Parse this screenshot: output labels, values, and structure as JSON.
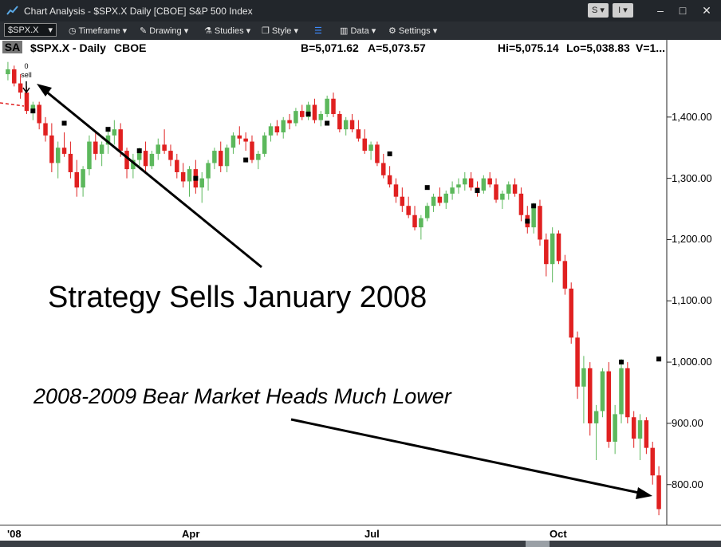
{
  "window": {
    "title": "Chart Analysis - $SPX.X Daily [CBOE] S&P 500 Index",
    "btn_s": "S ▾",
    "btn_i": "I ▾",
    "minimize": "–",
    "maximize": "□",
    "close": "✕"
  },
  "toolbar": {
    "symbol": "$SPX.X",
    "timeframe": "Timeframe",
    "drawing": "Drawing",
    "studies": "Studies",
    "style": "Style",
    "data": "Data",
    "settings": "Settings"
  },
  "info": {
    "badge": "SA",
    "symbol": "$SPX.X - Daily",
    "exchange": "CBOE",
    "bid": "B=5,071.62",
    "ask": "A=5,073.57",
    "hi": "Hi=5,075.14",
    "lo": "Lo=5,038.83",
    "vol": "V=1..."
  },
  "annotations": {
    "strategy_text": "Strategy Sells January 2008",
    "bear_text": "2008-2009 Bear Market Heads Much Lower",
    "signal_count": "0",
    "signal_label": "sell"
  },
  "colors": {
    "up": "#5cb85c",
    "down": "#e02020",
    "marker": "#000000",
    "chart_bg": "#ffffff"
  },
  "chart_data": {
    "type": "candlestick",
    "y_ticks": [
      "1,400.00",
      "1,300.00",
      "1,200.00",
      "1,100.00",
      "1,000.00",
      "900.00",
      "800.00"
    ],
    "y_tick_values": [
      1400,
      1300,
      1200,
      1100,
      1000,
      900,
      800
    ],
    "x_ticks": [
      "'08",
      "Apr",
      "Jul",
      "Oct"
    ],
    "ylim": [
      745,
      1500
    ],
    "series": [
      {
        "values": [
          [
            1470,
            1490,
            1460,
            1478
          ],
          [
            1478,
            1484,
            1450,
            1455
          ],
          [
            1455,
            1470,
            1430,
            1440
          ],
          [
            1440,
            1450,
            1405,
            1410
          ],
          [
            1410,
            1425,
            1395,
            1420
          ],
          [
            1420,
            1425,
            1380,
            1390
          ],
          [
            1390,
            1400,
            1360,
            1370
          ],
          [
            1370,
            1390,
            1310,
            1325
          ],
          [
            1325,
            1360,
            1300,
            1350
          ],
          [
            1350,
            1375,
            1335,
            1340
          ],
          [
            1340,
            1360,
            1300,
            1310
          ],
          [
            1310,
            1330,
            1270,
            1285
          ],
          [
            1285,
            1320,
            1270,
            1315
          ],
          [
            1315,
            1370,
            1305,
            1360
          ],
          [
            1360,
            1375,
            1330,
            1340
          ],
          [
            1340,
            1360,
            1320,
            1355
          ],
          [
            1355,
            1380,
            1340,
            1370
          ],
          [
            1370,
            1395,
            1355,
            1380
          ],
          [
            1380,
            1390,
            1335,
            1345
          ],
          [
            1345,
            1350,
            1300,
            1315
          ],
          [
            1315,
            1340,
            1300,
            1330
          ],
          [
            1330,
            1350,
            1315,
            1345
          ],
          [
            1345,
            1360,
            1310,
            1320
          ],
          [
            1320,
            1345,
            1315,
            1340
          ],
          [
            1340,
            1365,
            1330,
            1355
          ],
          [
            1355,
            1380,
            1340,
            1345
          ],
          [
            1345,
            1355,
            1320,
            1330
          ],
          [
            1330,
            1340,
            1300,
            1310
          ],
          [
            1310,
            1325,
            1285,
            1295
          ],
          [
            1295,
            1320,
            1270,
            1315
          ],
          [
            1315,
            1330,
            1275,
            1285
          ],
          [
            1285,
            1310,
            1260,
            1300
          ],
          [
            1300,
            1330,
            1280,
            1325
          ],
          [
            1325,
            1350,
            1315,
            1345
          ],
          [
            1345,
            1360,
            1310,
            1320
          ],
          [
            1320,
            1355,
            1310,
            1350
          ],
          [
            1350,
            1375,
            1340,
            1370
          ],
          [
            1370,
            1385,
            1355,
            1365
          ],
          [
            1365,
            1375,
            1345,
            1360
          ],
          [
            1360,
            1370,
            1325,
            1330
          ],
          [
            1330,
            1345,
            1315,
            1340
          ],
          [
            1340,
            1375,
            1335,
            1370
          ],
          [
            1370,
            1390,
            1360,
            1385
          ],
          [
            1385,
            1395,
            1370,
            1375
          ],
          [
            1375,
            1400,
            1365,
            1395
          ],
          [
            1395,
            1405,
            1380,
            1390
          ],
          [
            1390,
            1415,
            1385,
            1410
          ],
          [
            1410,
            1420,
            1395,
            1400
          ],
          [
            1400,
            1425,
            1395,
            1420
          ],
          [
            1420,
            1430,
            1390,
            1395
          ],
          [
            1395,
            1410,
            1385,
            1405
          ],
          [
            1405,
            1435,
            1400,
            1430
          ],
          [
            1430,
            1440,
            1400,
            1405
          ],
          [
            1405,
            1410,
            1375,
            1380
          ],
          [
            1380,
            1400,
            1370,
            1395
          ],
          [
            1395,
            1405,
            1375,
            1380
          ],
          [
            1380,
            1395,
            1360,
            1365
          ],
          [
            1365,
            1380,
            1340,
            1345
          ],
          [
            1345,
            1360,
            1330,
            1355
          ],
          [
            1355,
            1360,
            1320,
            1325
          ],
          [
            1325,
            1340,
            1300,
            1305
          ],
          [
            1305,
            1320,
            1285,
            1290
          ],
          [
            1290,
            1300,
            1260,
            1270
          ],
          [
            1270,
            1285,
            1245,
            1255
          ],
          [
            1255,
            1270,
            1235,
            1240
          ],
          [
            1240,
            1255,
            1215,
            1220
          ],
          [
            1220,
            1240,
            1200,
            1235
          ],
          [
            1235,
            1260,
            1230,
            1255
          ],
          [
            1255,
            1275,
            1245,
            1270
          ],
          [
            1270,
            1285,
            1255,
            1260
          ],
          [
            1260,
            1280,
            1250,
            1275
          ],
          [
            1275,
            1295,
            1265,
            1285
          ],
          [
            1285,
            1300,
            1275,
            1290
          ],
          [
            1290,
            1310,
            1280,
            1300
          ],
          [
            1300,
            1310,
            1280,
            1285
          ],
          [
            1285,
            1295,
            1270,
            1280
          ],
          [
            1280,
            1305,
            1275,
            1300
          ],
          [
            1300,
            1310,
            1285,
            1290
          ],
          [
            1290,
            1300,
            1260,
            1265
          ],
          [
            1265,
            1280,
            1250,
            1275
          ],
          [
            1275,
            1295,
            1265,
            1290
          ],
          [
            1290,
            1300,
            1270,
            1275
          ],
          [
            1275,
            1285,
            1230,
            1240
          ],
          [
            1240,
            1255,
            1210,
            1220
          ],
          [
            1220,
            1260,
            1210,
            1255
          ],
          [
            1255,
            1265,
            1190,
            1200
          ],
          [
            1200,
            1210,
            1140,
            1160
          ],
          [
            1160,
            1220,
            1130,
            1210
          ],
          [
            1210,
            1215,
            1160,
            1165
          ],
          [
            1165,
            1175,
            1110,
            1120
          ],
          [
            1120,
            1130,
            1030,
            1040
          ],
          [
            1040,
            1050,
            940,
            960
          ],
          [
            960,
            1010,
            900,
            990
          ],
          [
            990,
            1000,
            880,
            900
          ],
          [
            900,
            930,
            840,
            920
          ],
          [
            920,
            990,
            910,
            985
          ],
          [
            985,
            1000,
            860,
            870
          ],
          [
            870,
            930,
            850,
            915
          ],
          [
            915,
            1005,
            900,
            990
          ],
          [
            990,
            1000,
            900,
            910
          ],
          [
            910,
            920,
            860,
            875
          ],
          [
            875,
            915,
            840,
            905
          ],
          [
            905,
            910,
            850,
            860
          ],
          [
            860,
            870,
            800,
            815
          ],
          [
            815,
            830,
            750,
            760
          ]
        ]
      }
    ],
    "signal_markers": [
      1410,
      1390,
      1380,
      1345,
      1300,
      1330,
      1405,
      1390,
      1340,
      1230,
      1285,
      1280,
      1255,
      1000,
      1005
    ]
  }
}
